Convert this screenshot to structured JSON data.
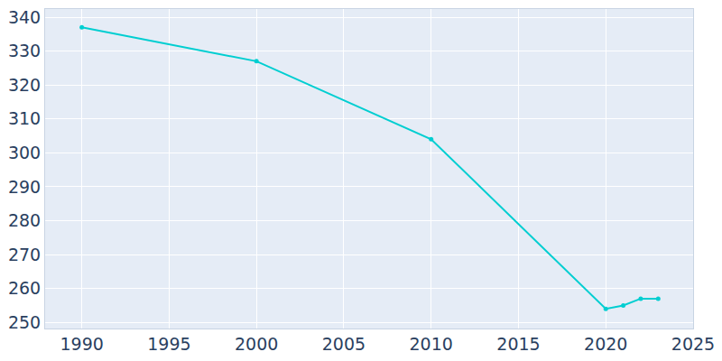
{
  "chart_data": {
    "type": "line",
    "x": [
      1990,
      2000,
      2010,
      2020,
      2021,
      2022,
      2023
    ],
    "values": [
      337,
      327,
      304,
      254,
      255,
      257,
      257
    ],
    "color": "#00CED1",
    "marker": "circle",
    "xlim": [
      1987.9,
      2025
    ],
    "xticks": [
      1990,
      1995,
      2000,
      2005,
      2010,
      2015,
      2020,
      2025
    ],
    "ylim": [
      248.2,
      342.4
    ],
    "yticks": [
      250,
      260,
      270,
      280,
      290,
      300,
      310,
      320,
      330,
      340
    ],
    "grid": true
  }
}
